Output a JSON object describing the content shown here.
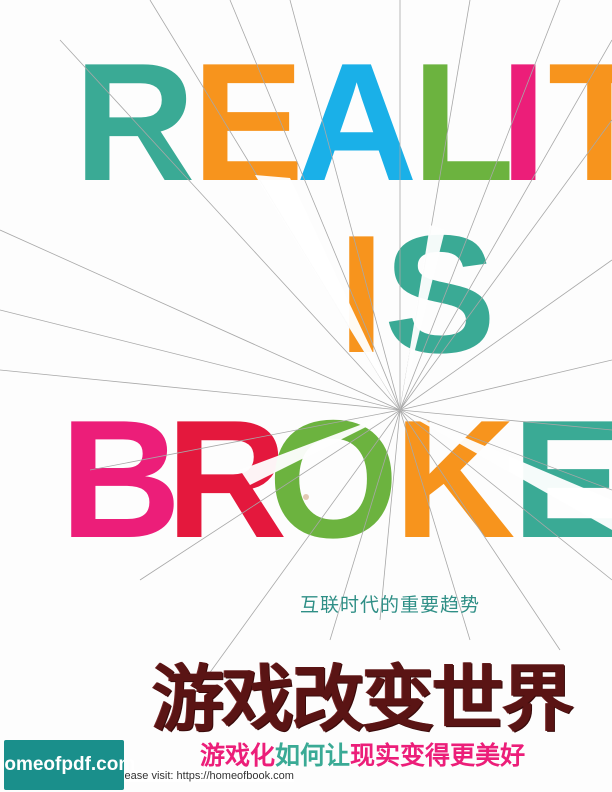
{
  "cover": {
    "english_title": {
      "row1": [
        "R",
        "E",
        "A",
        "L",
        "I",
        "T"
      ],
      "row2": [
        "I",
        "S"
      ],
      "row3": [
        "B",
        "R",
        "O",
        "K",
        "E"
      ]
    },
    "letter_colors": {
      "teal": "#3aaa95",
      "orange": "#f7941d",
      "blue": "#1ab0e8",
      "green": "#6cb33f",
      "pink": "#ec1e79",
      "red": "#e4183d"
    },
    "subtitle": "互联时代的重要趋势",
    "chinese_title": "游戏改变世界",
    "tagline_parts": [
      {
        "text": "游戏化",
        "color": "#ec1e79"
      },
      {
        "text": "如何让",
        "color": "#3aaa95"
      },
      {
        "text": "现实",
        "color": "#ec1e79"
      },
      {
        "text": "变得",
        "color": "#ec1e79"
      },
      {
        "text": "更美好",
        "color": "#ec1e79"
      }
    ]
  },
  "watermark": {
    "badge": "homeofpdf.com",
    "visit_text": "please visit: https://homeofbook.com"
  }
}
